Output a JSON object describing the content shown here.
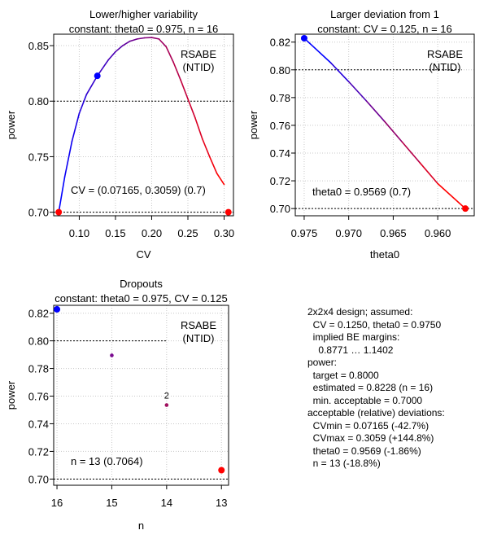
{
  "chart_data": [
    {
      "type": "line",
      "title": [
        "Lower/higher variability",
        "constant: theta0 = 0.975, n = 16"
      ],
      "xlabel": "CV",
      "ylabel": "power",
      "xlim": [
        0.0647,
        0.3129
      ],
      "ylim": [
        0.6968,
        0.8603
      ],
      "x_ticks": [
        0.1,
        0.15,
        0.2,
        0.25,
        0.3
      ],
      "x_tick_labels": [
        "0.10",
        "0.15",
        "0.20",
        "0.25",
        "0.30"
      ],
      "y_ticks": [
        0.7,
        0.75,
        0.8,
        0.85
      ],
      "y_tick_labels": [
        "0.70",
        "0.75",
        "0.80",
        "0.85"
      ],
      "grid": true,
      "reference_lines": [
        {
          "axis": "y",
          "value": 0.8
        },
        {
          "axis": "y",
          "value": 0.7
        }
      ],
      "series": [
        {
          "x": [
            0.07165,
            0.08,
            0.09,
            0.1,
            0.11,
            0.125,
            0.14,
            0.15,
            0.16,
            0.17,
            0.18,
            0.19,
            0.2,
            0.21,
            0.22,
            0.23,
            0.24,
            0.25,
            0.26,
            0.27,
            0.28,
            0.29,
            0.3
          ],
          "y": [
            0.7,
            0.732,
            0.764,
            0.789,
            0.806,
            0.8228,
            0.837,
            0.8445,
            0.85,
            0.854,
            0.856,
            0.857,
            0.8573,
            0.856,
            0.849,
            0.835,
            0.819,
            0.802,
            0.785,
            0.766,
            0.75,
            0.735,
            0.725
          ]
        }
      ],
      "markers": [
        {
          "x": 0.125,
          "y": 0.8228,
          "color": "#0000ff"
        },
        {
          "x": 0.07165,
          "y": 0.7,
          "color": "#ff0000"
        },
        {
          "x": 0.3059,
          "y": 0.7,
          "color": "#ff0000"
        }
      ],
      "legend_lines": [
        "RSABE",
        "(NTID)"
      ],
      "annotation": "CV = (0.07165, 0.3059) (0.7)"
    },
    {
      "type": "line",
      "title": [
        "Larger deviation from 1",
        "constant: CV = 0.125, n = 16"
      ],
      "xlabel": "theta0",
      "ylabel": "power",
      "xlim": [
        0.976,
        0.9559
      ],
      "ylim": [
        0.6948,
        0.8257
      ],
      "x_ticks": [
        0.975,
        0.97,
        0.965,
        0.96
      ],
      "x_tick_labels": [
        "0.975",
        "0.970",
        "0.965",
        "0.960"
      ],
      "y_ticks": [
        0.7,
        0.72,
        0.74,
        0.76,
        0.78,
        0.8,
        0.82
      ],
      "y_tick_labels": [
        "0.70",
        "0.72",
        "0.74",
        "0.76",
        "0.78",
        "0.80",
        "0.82"
      ],
      "grid": true,
      "reference_lines": [
        {
          "axis": "y",
          "value": 0.8
        },
        {
          "axis": "y",
          "value": 0.7
        }
      ],
      "series": [
        {
          "x": [
            0.975,
            0.972,
            0.97,
            0.968,
            0.966,
            0.964,
            0.962,
            0.96,
            0.9569
          ],
          "y": [
            0.8228,
            0.805,
            0.7915,
            0.7775,
            0.763,
            0.748,
            0.733,
            0.718,
            0.7
          ]
        }
      ],
      "markers": [
        {
          "x": 0.975,
          "y": 0.8228,
          "color": "#0000ff"
        },
        {
          "x": 0.9569,
          "y": 0.7,
          "color": "#ff0000"
        }
      ],
      "legend_lines": [
        "RSABE",
        "(NTID)"
      ],
      "annotation": "theta0 = 0.9569 (0.7)"
    },
    {
      "type": "scatter",
      "title": [
        "Dropouts",
        "constant: theta0 = 0.975, CV = 0.125"
      ],
      "xlabel": "n",
      "ylabel": "power",
      "xlim": [
        16.06,
        12.87
      ],
      "ylim": [
        0.6955,
        0.8257
      ],
      "x_ticks": [
        16,
        15,
        14,
        13
      ],
      "x_tick_labels": [
        "16",
        "15",
        "14",
        "13"
      ],
      "y_ticks": [
        0.7,
        0.72,
        0.74,
        0.76,
        0.78,
        0.8,
        0.82
      ],
      "y_tick_labels": [
        "0.70",
        "0.72",
        "0.74",
        "0.76",
        "0.78",
        "0.80",
        "0.82"
      ],
      "grid": true,
      "reference_lines": [
        {
          "axis": "y",
          "value": 0.8
        },
        {
          "axis": "y",
          "value": 0.7
        }
      ],
      "series": [
        {
          "x": [
            16,
            15,
            14,
            13
          ],
          "y": [
            0.8228,
            0.7895,
            0.7535,
            0.7064
          ],
          "colors": [
            "#0000ff",
            "#7a0a8f",
            "#a0105f",
            "#ff0000"
          ],
          "sizes": [
            "large",
            "small",
            "small",
            "large"
          ]
        }
      ],
      "point_labels": [
        {
          "x": 14,
          "y": 0.7535,
          "text": "2"
        }
      ],
      "legend_lines": [
        "RSABE",
        "(NTID)"
      ],
      "annotation": "n = 13 (0.7064)"
    }
  ],
  "summary": {
    "lines": [
      "2x2x4 design; assumed:",
      "  CV = 0.1250, theta0 = 0.9750",
      "  implied BE margins:",
      "    0.8771 … 1.1402",
      "power:",
      "  target = 0.8000",
      "  estimated = 0.8228 (n = 16)",
      "  min. acceptable = 0.7000",
      "acceptable (relative) deviations:",
      "  CVmin = 0.07165 (-42.7%)",
      "  CVmax = 0.3059 (+144.8%)",
      "  theta0 = 0.9569 (-1.86%)",
      "  n = 13 (-18.8%)"
    ]
  },
  "colors": {
    "start": "#0000ff",
    "end": "#ff0000",
    "ref_line": "#000000",
    "grid": "#c8c8c8"
  }
}
